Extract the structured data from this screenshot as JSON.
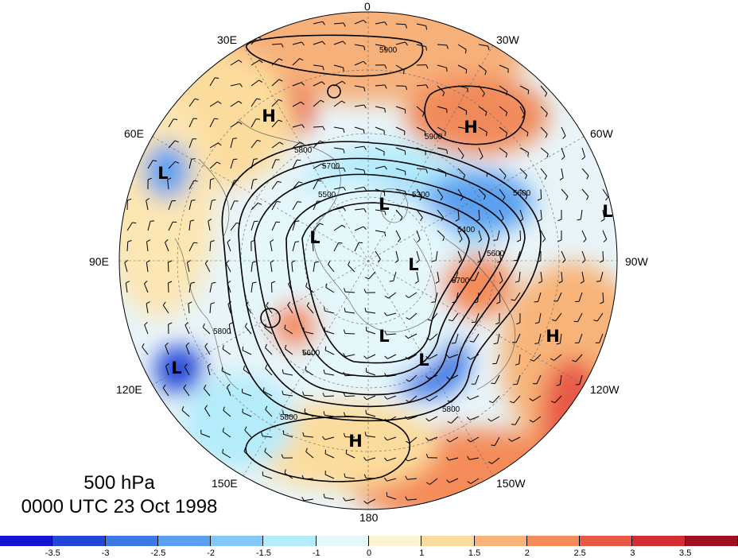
{
  "map": {
    "level": "500 hPa",
    "valid_time": "0000 UTC 23 Oct 1998",
    "longitude_labels": [
      "0",
      "30W",
      "60W",
      "90W",
      "120W",
      "150W",
      "180",
      "150E",
      "120E",
      "90E",
      "60E",
      "30E"
    ],
    "centers": [
      {
        "type": "H"
      },
      {
        "type": "H"
      },
      {
        "type": "H"
      },
      {
        "type": "H"
      },
      {
        "type": "L"
      },
      {
        "type": "L"
      },
      {
        "type": "L"
      },
      {
        "type": "L"
      },
      {
        "type": "L"
      },
      {
        "type": "L"
      },
      {
        "type": "L"
      },
      {
        "type": "L"
      }
    ],
    "contour_labels": [
      "5900",
      "5900",
      "5800",
      "5700",
      "5500",
      "5300",
      "5400",
      "5600",
      "5600",
      "5800",
      "5700",
      "5800",
      "5800",
      "5600"
    ]
  },
  "colorbar": {
    "tick_labels": [
      "-3.5",
      "-3",
      "-2.5",
      "-2",
      "-1.5",
      "-1",
      "0",
      "1",
      "1.5",
      "2",
      "2.5",
      "3",
      "3.5"
    ],
    "colors": [
      "#1414d2",
      "#2346d8",
      "#3c78e6",
      "#5aa0f0",
      "#82c8f8",
      "#b4ecfc",
      "#e4f8fc",
      "#fcf4d2",
      "#fcdc9c",
      "#f8b478",
      "#f48c5a",
      "#e85a46",
      "#d22d32",
      "#a00f1e"
    ]
  }
}
